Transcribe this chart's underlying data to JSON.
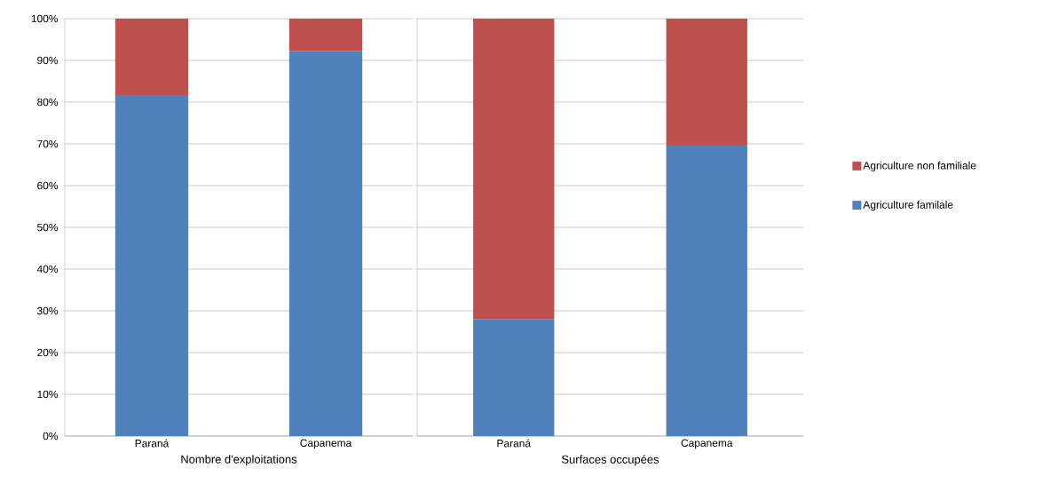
{
  "chart_data": [
    {
      "type": "bar",
      "stacked": true,
      "xlabel": "Nombre d'exploitations",
      "categories": [
        "Paraná",
        "Capanema"
      ],
      "series": [
        {
          "color": "#4f81bd",
          "values": [
            81.7,
            92.3
          ]
        },
        {
          "color": "#c0504d",
          "values": [
            18.3,
            7.7
          ]
        }
      ],
      "ylim": [
        0,
        100
      ],
      "yticks": [
        {
          "value": 0,
          "label": "0%"
        },
        {
          "value": 10,
          "label": "10%"
        },
        {
          "value": 20,
          "label": "20%"
        },
        {
          "value": 30,
          "label": "30%"
        },
        {
          "value": 40,
          "label": "40%"
        },
        {
          "value": 50,
          "label": "50%"
        },
        {
          "value": 60,
          "label": "60%"
        },
        {
          "value": 70,
          "label": "70%"
        },
        {
          "value": 80,
          "label": "80%"
        },
        {
          "value": 90,
          "label": "90%"
        },
        {
          "value": 100,
          "label": "100%"
        }
      ],
      "grid": "y"
    },
    {
      "type": "bar",
      "stacked": true,
      "xlabel": "Surfaces occupées",
      "categories": [
        "Paraná",
        "Capanema"
      ],
      "series": [
        {
          "name": "Agriculture familale",
          "color": "#4f81bd",
          "values": [
            27.9,
            69.6
          ]
        },
        {
          "name": "Agriculture non familiale",
          "color": "#c0504d",
          "values": [
            72.1,
            30.4
          ]
        }
      ],
      "ylim": [
        0,
        100
      ],
      "yticks": [
        {
          "value": 0,
          "label": null
        },
        {
          "value": 10,
          "label": null
        },
        {
          "value": 20,
          "label": null
        },
        {
          "value": 30,
          "label": null
        },
        {
          "value": 40,
          "label": null
        },
        {
          "value": 50,
          "label": null
        },
        {
          "value": 60,
          "label": null
        },
        {
          "value": 70,
          "label": null
        },
        {
          "value": 80,
          "label": null
        },
        {
          "value": 90,
          "label": null
        },
        {
          "value": 100,
          "label": null
        }
      ],
      "grid": "y",
      "tick_labels": "x",
      "legend": "right"
    }
  ]
}
